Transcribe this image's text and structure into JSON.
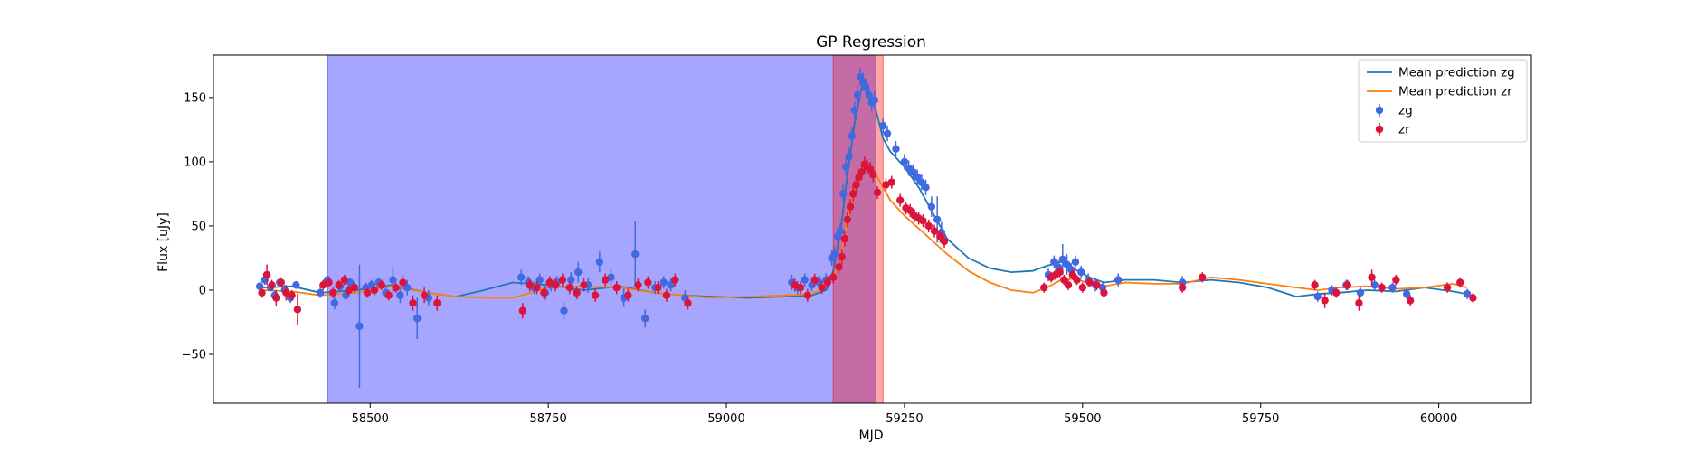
{
  "chart_data": {
    "type": "scatter",
    "title": "GP Regression",
    "xlabel": "MJD",
    "ylabel": "Flux [uJy]",
    "xlim": [
      58280,
      60130
    ],
    "ylim": [
      -88,
      183
    ],
    "xticks": [
      58500,
      58750,
      59000,
      59250,
      59500,
      59750,
      60000
    ],
    "yticks": [
      -50,
      0,
      50,
      100,
      150
    ],
    "grid": false,
    "legend_position": "top-right",
    "shaded_regions": [
      {
        "x0": 58440,
        "x1": 59210,
        "color": "#0000ff",
        "opacity": 0.35
      },
      {
        "x0": 59150,
        "x1": 59220,
        "color": "#ff0000",
        "opacity": 0.35
      }
    ],
    "series": [
      {
        "name": "Mean prediction zg",
        "kind": "line",
        "color": "#1f77b4",
        "x": [
          58350,
          58390,
          58430,
          58480,
          58530,
          58580,
          58620,
          58660,
          58700,
          58750,
          58800,
          58850,
          58900,
          58940,
          58980,
          59030,
          59080,
          59120,
          59140,
          59150,
          59160,
          59170,
          59180,
          59190,
          59200,
          59210,
          59220,
          59230,
          59250,
          59270,
          59290,
          59310,
          59340,
          59370,
          59400,
          59430,
          59450,
          59470,
          59490,
          59510,
          59530,
          59560,
          59600,
          59640,
          59680,
          59720,
          59760,
          59800,
          59830,
          59860,
          59900,
          59940,
          59980,
          60020,
          60040
        ],
        "y": [
          2,
          3,
          -2,
          0,
          4,
          -2,
          -5,
          0,
          6,
          4,
          0,
          3,
          -2,
          -4,
          -5,
          -6,
          -5,
          -4,
          0,
          15,
          45,
          90,
          130,
          158,
          155,
          140,
          118,
          108,
          96,
          80,
          60,
          40,
          25,
          17,
          14,
          15,
          19,
          22,
          16,
          10,
          6,
          8,
          8,
          6,
          8,
          6,
          2,
          -5,
          -3,
          -2,
          0,
          -1,
          2,
          -1,
          -3
        ]
      },
      {
        "name": "Mean prediction zr",
        "kind": "line",
        "color": "#ff7f0e",
        "x": [
          58350,
          58390,
          58430,
          58480,
          58530,
          58580,
          58620,
          58660,
          58700,
          58750,
          58800,
          58850,
          58900,
          58940,
          58980,
          59030,
          59080,
          59120,
          59140,
          59150,
          59160,
          59170,
          59180,
          59190,
          59200,
          59210,
          59220,
          59230,
          59250,
          59270,
          59290,
          59310,
          59340,
          59370,
          59400,
          59430,
          59450,
          59470,
          59490,
          59510,
          59530,
          59560,
          59600,
          59640,
          59680,
          59720,
          59760,
          59800,
          59830,
          59860,
          59900,
          59940,
          59980,
          60020,
          60040
        ],
        "y": [
          0,
          -1,
          -4,
          -2,
          3,
          -2,
          -5,
          -6,
          -6,
          2,
          3,
          2,
          -2,
          -4,
          -6,
          -5,
          -4,
          -3,
          3,
          10,
          25,
          55,
          80,
          96,
          98,
          90,
          80,
          70,
          58,
          48,
          38,
          28,
          15,
          6,
          0,
          -2,
          2,
          8,
          9,
          5,
          3,
          6,
          5,
          5,
          10,
          8,
          5,
          2,
          0,
          2,
          3,
          1,
          2,
          5,
          2
        ]
      },
      {
        "name": "zg",
        "kind": "errorbar",
        "color": "#4169e1",
        "x": [
          58345,
          58352,
          58360,
          58366,
          58373,
          58380,
          58388,
          58396,
          58430,
          58440,
          58450,
          58458,
          58466,
          58472,
          58485,
          58494,
          58502,
          58512,
          58522,
          58532,
          58542,
          58552,
          58566,
          58582,
          58712,
          58722,
          58730,
          58738,
          58746,
          58754,
          58762,
          58772,
          58782,
          58792,
          58806,
          58822,
          58838,
          58856,
          58872,
          58886,
          58900,
          58912,
          58922,
          58942,
          59092,
          59100,
          59110,
          59120,
          59130,
          59140,
          59148,
          59152,
          59156,
          59160,
          59164,
          59168,
          59172,
          59176,
          59180,
          59184,
          59188,
          59192,
          59196,
          59200,
          59204,
          59208,
          59220,
          59226,
          59238,
          59250,
          59256,
          59262,
          59268,
          59274,
          59280,
          59288,
          59296,
          59302,
          59452,
          59460,
          59466,
          59472,
          59478,
          59484,
          59490,
          59498,
          59508,
          59518,
          59528,
          59550,
          59640,
          59830,
          59850,
          59870,
          59890,
          59910,
          59935,
          59955,
          60040
        ],
        "y": [
          3,
          8,
          2,
          -4,
          6,
          0,
          -6,
          4,
          -2,
          8,
          -10,
          3,
          -4,
          6,
          -28,
          2,
          4,
          6,
          -2,
          8,
          -4,
          2,
          -22,
          -6,
          10,
          6,
          2,
          8,
          -2,
          4,
          6,
          -16,
          8,
          14,
          4,
          22,
          10,
          -6,
          28,
          -22,
          2,
          6,
          4,
          -6,
          6,
          2,
          8,
          4,
          6,
          8,
          25,
          28,
          42,
          46,
          75,
          96,
          104,
          120,
          140,
          152,
          166,
          162,
          158,
          152,
          146,
          148,
          128,
          122,
          110,
          100,
          95,
          92,
          88,
          84,
          80,
          65,
          55,
          45,
          12,
          22,
          18,
          24,
          20,
          16,
          22,
          14,
          8,
          4,
          2,
          8,
          6,
          -5,
          0,
          4,
          -2,
          4,
          2,
          -3,
          -3
        ],
        "yerr": [
          3,
          4,
          3,
          4,
          3,
          4,
          4,
          3,
          4,
          4,
          5,
          4,
          4,
          4,
          48,
          4,
          4,
          4,
          4,
          10,
          6,
          6,
          16,
          6,
          6,
          5,
          5,
          5,
          6,
          5,
          5,
          7,
          6,
          8,
          6,
          8,
          6,
          7,
          26,
          7,
          5,
          5,
          5,
          6,
          6,
          5,
          5,
          5,
          5,
          5,
          6,
          6,
          6,
          6,
          7,
          7,
          7,
          7,
          7,
          7,
          7,
          7,
          7,
          7,
          7,
          7,
          6,
          6,
          6,
          6,
          6,
          6,
          6,
          6,
          6,
          8,
          18,
          8,
          5,
          5,
          5,
          12,
          8,
          5,
          5,
          5,
          5,
          5,
          5,
          5,
          5,
          4,
          4,
          4,
          4,
          4,
          4,
          4,
          4
        ]
      },
      {
        "name": "zr",
        "kind": "errorbar",
        "color": "#dc143c",
        "x": [
          58348,
          58355,
          58362,
          58368,
          58375,
          58382,
          58390,
          58398,
          58434,
          58442,
          58448,
          58456,
          58464,
          58470,
          58478,
          58496,
          58506,
          58516,
          58526,
          58536,
          58546,
          58560,
          58576,
          58594,
          58714,
          58724,
          58734,
          58744,
          58752,
          58760,
          58770,
          58780,
          58790,
          58800,
          58816,
          58830,
          58846,
          58862,
          58876,
          58890,
          58904,
          58916,
          58928,
          58946,
          59096,
          59104,
          59114,
          59124,
          59134,
          59142,
          59150,
          59158,
          59162,
          59166,
          59170,
          59174,
          59178,
          59182,
          59186,
          59190,
          59194,
          59198,
          59202,
          59206,
          59212,
          59224,
          59232,
          59244,
          59252,
          59258,
          59264,
          59270,
          59276,
          59284,
          59292,
          59300,
          59306,
          59446,
          59456,
          59462,
          59468,
          59474,
          59480,
          59486,
          59492,
          59500,
          59510,
          59520,
          59530,
          59640,
          59668,
          59826,
          59840,
          59856,
          59872,
          59888,
          59906,
          59920,
          59940,
          59960,
          60012,
          60030,
          60048
        ],
        "y": [
          -2,
          12,
          4,
          -6,
          6,
          -2,
          -4,
          -15,
          4,
          6,
          -2,
          4,
          8,
          0,
          2,
          -2,
          0,
          4,
          -4,
          2,
          6,
          -10,
          -4,
          -10,
          -16,
          4,
          2,
          -2,
          6,
          4,
          8,
          2,
          -2,
          4,
          -4,
          8,
          2,
          -4,
          4,
          6,
          2,
          -4,
          8,
          -10,
          4,
          2,
          -4,
          8,
          2,
          6,
          10,
          18,
          26,
          40,
          55,
          65,
          75,
          82,
          88,
          92,
          98,
          96,
          94,
          90,
          76,
          82,
          84,
          70,
          64,
          62,
          58,
          56,
          54,
          50,
          46,
          42,
          38,
          2,
          10,
          12,
          14,
          8,
          4,
          12,
          8,
          2,
          6,
          4,
          -2,
          2,
          10,
          4,
          -8,
          -2,
          4,
          -10,
          10,
          2,
          8,
          -8,
          2,
          6,
          -6
        ],
        "yerr": [
          4,
          8,
          4,
          6,
          4,
          6,
          4,
          12,
          4,
          4,
          4,
          4,
          4,
          4,
          4,
          4,
          4,
          4,
          4,
          4,
          6,
          6,
          6,
          6,
          6,
          5,
          5,
          5,
          5,
          5,
          5,
          5,
          5,
          5,
          5,
          5,
          5,
          5,
          5,
          5,
          5,
          5,
          5,
          5,
          5,
          5,
          5,
          5,
          5,
          5,
          5,
          6,
          6,
          6,
          6,
          6,
          6,
          6,
          6,
          6,
          6,
          6,
          6,
          6,
          5,
          5,
          5,
          5,
          5,
          5,
          5,
          5,
          5,
          5,
          5,
          5,
          5,
          4,
          4,
          4,
          4,
          4,
          4,
          4,
          4,
          4,
          4,
          4,
          4,
          4,
          4,
          4,
          6,
          4,
          4,
          6,
          6,
          4,
          4,
          4,
          4,
          4,
          4
        ]
      }
    ]
  }
}
